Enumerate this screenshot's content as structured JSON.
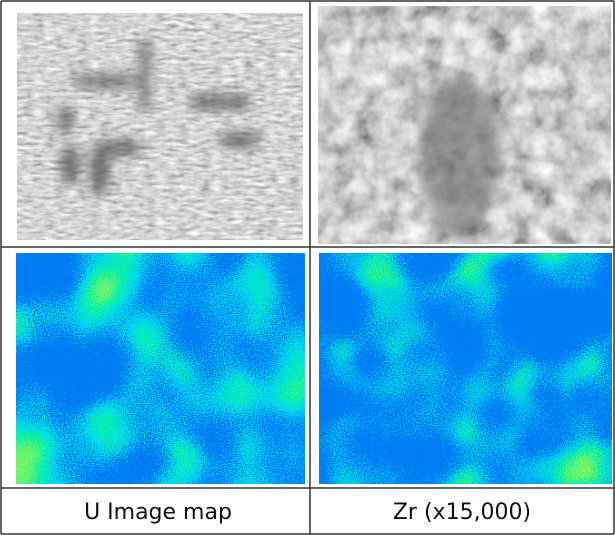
{
  "figure": {
    "captions": [
      "U Image map",
      "Zr (x15,000)"
    ]
  }
}
